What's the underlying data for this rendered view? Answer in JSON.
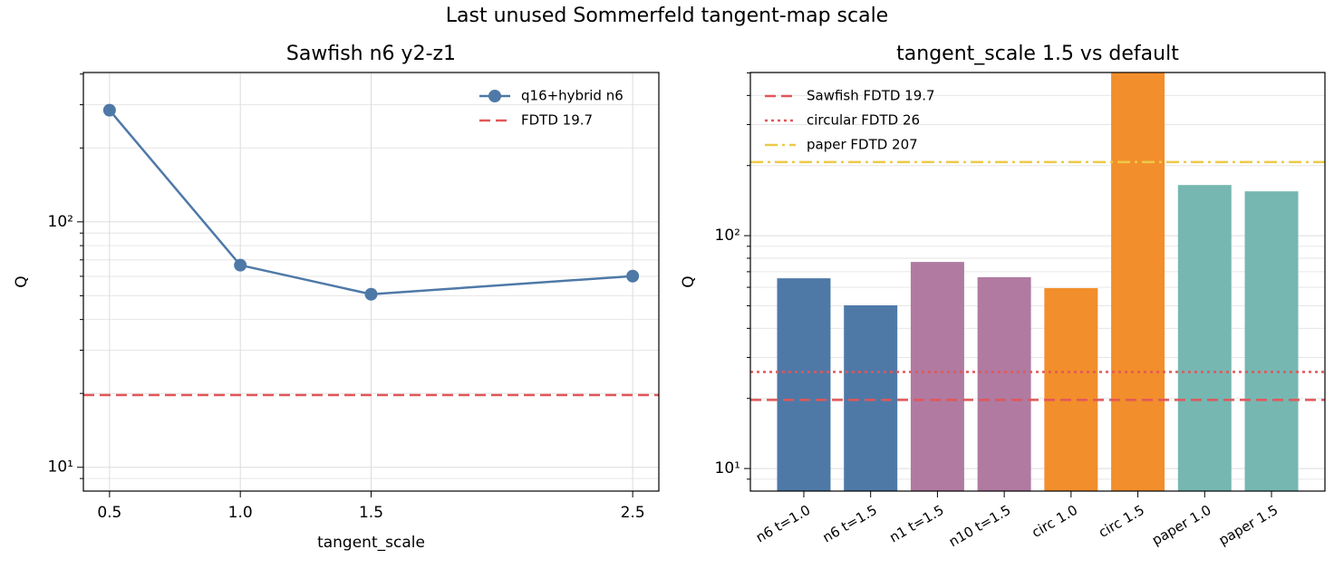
{
  "title": "Last unused Sommerfeld tangent-map scale",
  "chart_data": [
    {
      "type": "line",
      "title": "Sawfish n6 y2-z1",
      "xlabel": "tangent_scale",
      "ylabel": "Q",
      "x": [
        0.5,
        1.0,
        1.5,
        2.5
      ],
      "xticks": [
        0.5,
        {
          "value": 1.0,
          "label": "1.0"
        },
        1.5,
        2.5
      ],
      "xlim": [
        0.4,
        2.6
      ],
      "series": [
        {
          "name": "q16+hybrid n6",
          "color": "#4e79a7",
          "values": [
            285,
            66.6,
            50.7,
            60.1
          ]
        }
      ],
      "hlines": [
        {
          "name": "FDTD 19.7",
          "value": 19.7,
          "color": "#e15759",
          "style": "dashed"
        }
      ],
      "ylim": [
        8.0,
        406
      ],
      "log_y": true,
      "yticks": [
        {
          "value": 10,
          "label": "10¹"
        },
        {
          "value": 100,
          "label": "10²"
        }
      ],
      "yminorticks": [
        9,
        20,
        30,
        40,
        50,
        60,
        70,
        80,
        90,
        200,
        300,
        400
      ],
      "grid": true,
      "legend": "upper right"
    },
    {
      "type": "bar",
      "title": "tangent_scale 1.5 vs default",
      "ylabel": "Q",
      "categories": [
        "n6 t=1.0",
        "n6 t=1.5",
        "n1 t=1.5",
        "n10 t=1.5",
        "circ 1.0",
        "circ 1.5",
        "paper 1.0",
        "paper 1.5"
      ],
      "values": [
        65.6,
        50.2,
        77.1,
        66.3,
        59.5,
        550,
        165,
        155
      ],
      "colors": [
        "#4e79a7",
        "#4e79a7",
        "#b07aa1",
        "#b07aa1",
        "#f28e2b",
        "#f28e2b",
        "#76b7b2",
        "#76b7b2"
      ],
      "hlines": [
        {
          "name": "Sawfish FDTD 19.7",
          "value": 19.7,
          "color": "#e15759",
          "style": "dashed"
        },
        {
          "name": "circular FDTD 26",
          "value": 26,
          "color": "#e15759",
          "style": "dotted"
        },
        {
          "name": "paper FDTD 207",
          "value": 207,
          "color": "#edc948",
          "style": "dashdot"
        }
      ],
      "ylim": [
        8.0,
        502
      ],
      "log_y": true,
      "yticks": [
        {
          "value": 10,
          "label": "10¹"
        },
        {
          "value": 100,
          "label": "10²"
        }
      ],
      "yminorticks": [
        9,
        20,
        30,
        40,
        50,
        60,
        70,
        80,
        90,
        200,
        300,
        400,
        500
      ],
      "grid": true,
      "legend": "upper left"
    }
  ]
}
